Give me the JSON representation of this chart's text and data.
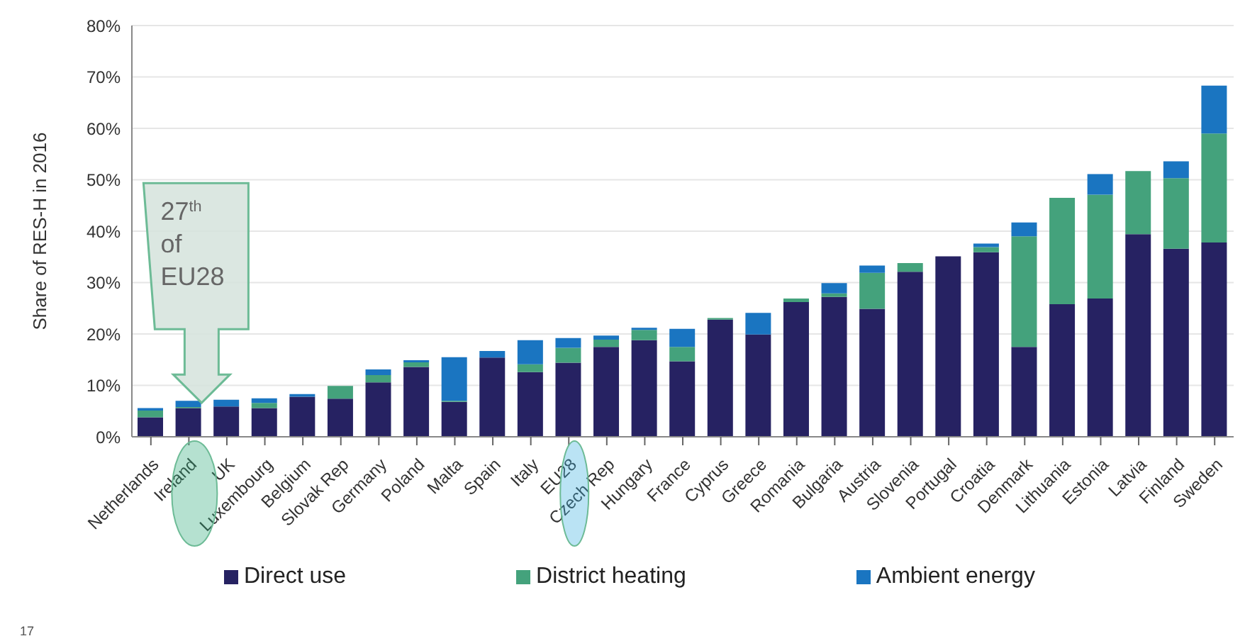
{
  "chart_data": {
    "type": "bar",
    "stacked": true,
    "ylabel": "Share of RES-H in 2016",
    "categories": [
      "Netherlands",
      "Ireland",
      "UK",
      "Luxembourg",
      "Belgium",
      "Slovak Rep",
      "Germany",
      "Poland",
      "Malta",
      "Spain",
      "Italy",
      "EU28",
      "Czech Rep",
      "Hungary",
      "France",
      "Cyprus",
      "Greece",
      "Romania",
      "Bulgaria",
      "Austria",
      "Slovenia",
      "Portugal",
      "Croatia",
      "Denmark",
      "Lithuania",
      "Estonia",
      "Latvia",
      "Finland",
      "Sweden"
    ],
    "series": [
      {
        "name": "Direct use",
        "color": "#262262",
        "values": [
          3.8,
          5.6,
          5.9,
          5.6,
          7.8,
          7.4,
          10.6,
          13.6,
          6.8,
          15.4,
          12.6,
          14.4,
          17.5,
          18.8,
          14.7,
          22.8,
          19.9,
          26.2,
          27.2,
          24.9,
          32.1,
          35.1,
          35.9,
          17.5,
          25.8,
          26.9,
          39.4,
          36.6,
          37.8
        ]
      },
      {
        "name": "District heating",
        "color": "#44a27c",
        "values": [
          1.3,
          0.2,
          0,
          1.0,
          0,
          2.5,
          1.4,
          0.9,
          0.2,
          0,
          1.5,
          2.9,
          1.4,
          2.0,
          2.8,
          0.3,
          0,
          0.7,
          0.7,
          7.0,
          1.7,
          0,
          1.0,
          21.5,
          20.7,
          20.2,
          12.3,
          13.7,
          21.2
        ]
      },
      {
        "name": "Ambient energy",
        "color": "#1a75c1",
        "values": [
          0.5,
          1.2,
          1.3,
          0.9,
          0.5,
          0,
          1.1,
          0.4,
          8.5,
          1.3,
          4.7,
          1.9,
          0.8,
          0.4,
          3.5,
          0,
          4.2,
          0,
          2.0,
          1.4,
          0,
          0,
          0.7,
          2.7,
          0,
          4.0,
          0,
          3.3,
          9.3
        ]
      }
    ],
    "ylim": [
      0,
      80
    ],
    "yticks": [
      {
        "value": 0,
        "label": "0%"
      },
      {
        "value": 10,
        "label": "10%"
      },
      {
        "value": 20,
        "label": "20%"
      },
      {
        "value": 30,
        "label": "30%"
      },
      {
        "value": 40,
        "label": "40%"
      },
      {
        "value": 50,
        "label": "50%"
      },
      {
        "value": 60,
        "label": "60%"
      },
      {
        "value": 70,
        "label": "70%"
      },
      {
        "value": 80,
        "label": "80%"
      }
    ],
    "grid": "y",
    "legend": "bottom",
    "annotations": [
      "27$^{th}$ of EU28",
      "17"
    ]
  }
}
